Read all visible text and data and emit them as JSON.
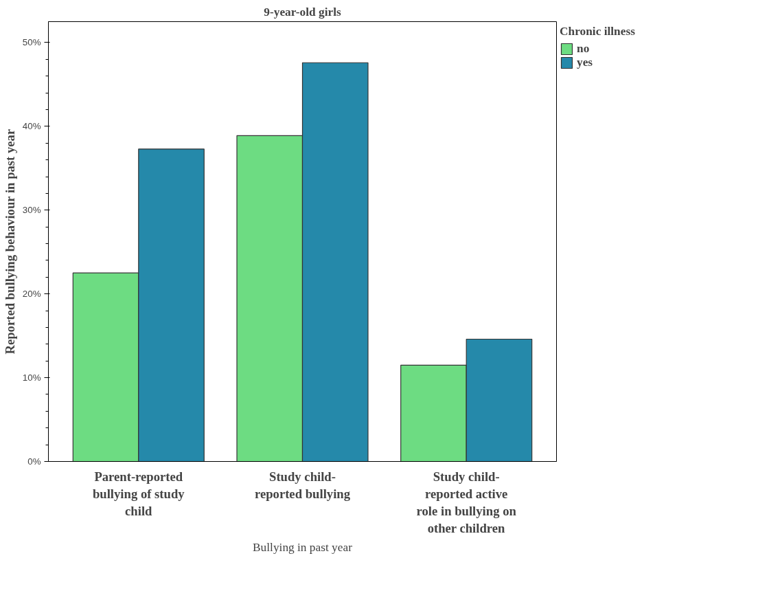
{
  "chart_data": {
    "type": "bar",
    "title": "9-year-old girls",
    "xlabel": "Bullying in past year",
    "ylabel": "Reported bullying behaviour in past year",
    "legend_title": "Chronic illness",
    "categories": [
      "Parent-reported bullying of study child",
      "Study child-reported bullying",
      "Study child-reported active role in bullying on other children"
    ],
    "series": [
      {
        "name": "no",
        "color": "#6ddc82",
        "values": [
          22.5,
          38.9,
          11.5
        ]
      },
      {
        "name": "yes",
        "color": "#2589aa",
        "values": [
          37.3,
          47.6,
          14.6
        ]
      }
    ],
    "ylim": [
      0,
      52.5
    ],
    "yticks": [
      {
        "value": 0,
        "label": "0%"
      },
      {
        "value": 10,
        "label": "10%"
      },
      {
        "value": 20,
        "label": "20%"
      },
      {
        "value": 30,
        "label": "30%"
      },
      {
        "value": 40,
        "label": "40%"
      },
      {
        "value": 50,
        "label": "50%"
      }
    ],
    "grid": false,
    "legend": "right"
  }
}
